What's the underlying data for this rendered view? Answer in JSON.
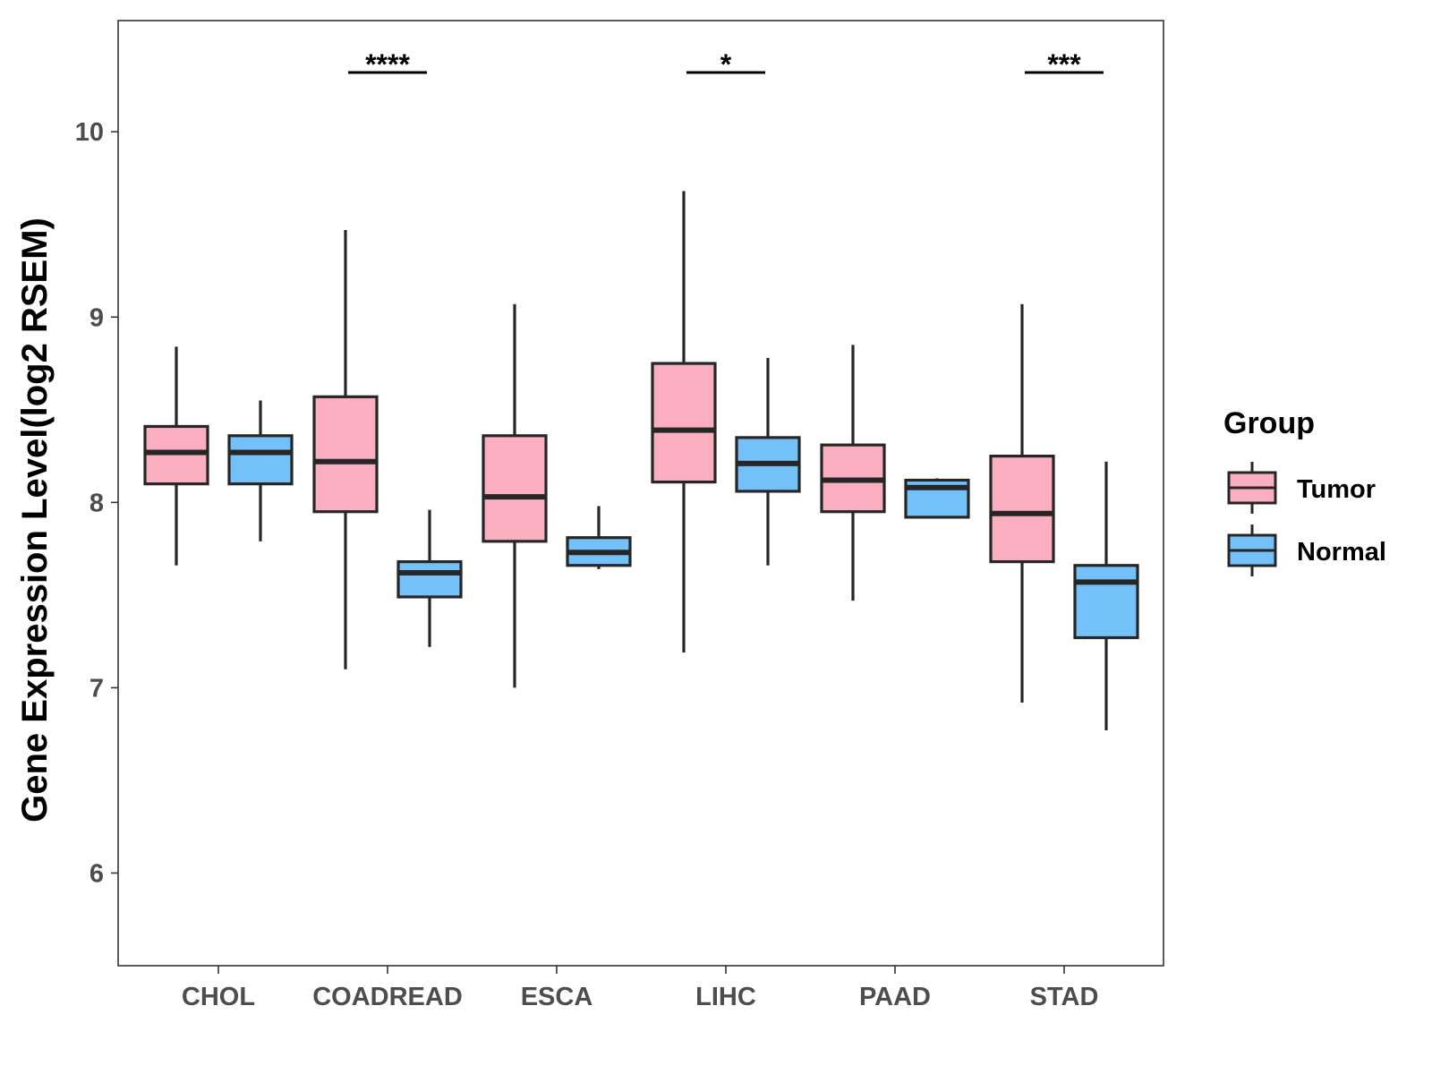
{
  "chart_data": {
    "type": "boxplot",
    "title": "",
    "xlabel": "",
    "ylabel": "Gene Expression Level(log2 RSEM)",
    "ylim": [
      5.5,
      10.6
    ],
    "yticks": [
      6,
      7,
      8,
      9,
      10
    ],
    "grid": false,
    "legend": {
      "title": "Group",
      "placement": "right",
      "entries": [
        {
          "name": "Tumor",
          "color": "#F9AFBF"
        },
        {
          "name": "Normal",
          "color": "#74C0F8"
        }
      ]
    },
    "categories": [
      "CHOL",
      "COADREAD",
      "ESCA",
      "LIHC",
      "PAAD",
      "STAD"
    ],
    "series": [
      {
        "name": "Tumor",
        "color": "#F9AFBF",
        "boxes": [
          {
            "category": "CHOL",
            "min": 7.66,
            "q1": 8.1,
            "median": 8.27,
            "q3": 8.41,
            "max": 8.84
          },
          {
            "category": "COADREAD",
            "min": 7.1,
            "q1": 7.95,
            "median": 8.22,
            "q3": 8.57,
            "max": 9.47
          },
          {
            "category": "ESCA",
            "min": 7.0,
            "q1": 7.79,
            "median": 8.03,
            "q3": 8.36,
            "max": 9.07
          },
          {
            "category": "LIHC",
            "min": 7.19,
            "q1": 8.11,
            "median": 8.39,
            "q3": 8.75,
            "max": 9.68
          },
          {
            "category": "PAAD",
            "min": 7.47,
            "q1": 7.95,
            "median": 8.12,
            "q3": 8.31,
            "max": 8.85
          },
          {
            "category": "STAD",
            "min": 6.92,
            "q1": 7.68,
            "median": 7.94,
            "q3": 8.25,
            "max": 9.07
          }
        ]
      },
      {
        "name": "Normal",
        "color": "#74C0F8",
        "boxes": [
          {
            "category": "CHOL",
            "min": 7.79,
            "q1": 8.1,
            "median": 8.27,
            "q3": 8.36,
            "max": 8.55
          },
          {
            "category": "COADREAD",
            "min": 7.22,
            "q1": 7.49,
            "median": 7.62,
            "q3": 7.68,
            "max": 7.96
          },
          {
            "category": "ESCA",
            "min": 7.64,
            "q1": 7.66,
            "median": 7.73,
            "q3": 7.81,
            "max": 7.98
          },
          {
            "category": "LIHC",
            "min": 7.66,
            "q1": 8.06,
            "median": 8.21,
            "q3": 8.35,
            "max": 8.78
          },
          {
            "category": "PAAD",
            "min": 7.92,
            "q1": 7.92,
            "median": 8.08,
            "q3": 8.12,
            "max": 8.13
          },
          {
            "category": "STAD",
            "min": 6.77,
            "q1": 7.27,
            "median": 7.57,
            "q3": 7.66,
            "max": 8.22
          }
        ]
      }
    ],
    "significance": [
      {
        "category": "COADREAD",
        "label": "****",
        "y": 10.32
      },
      {
        "category": "LIHC",
        "label": "*",
        "y": 10.32
      },
      {
        "category": "STAD",
        "label": "***",
        "y": 10.32
      }
    ]
  }
}
